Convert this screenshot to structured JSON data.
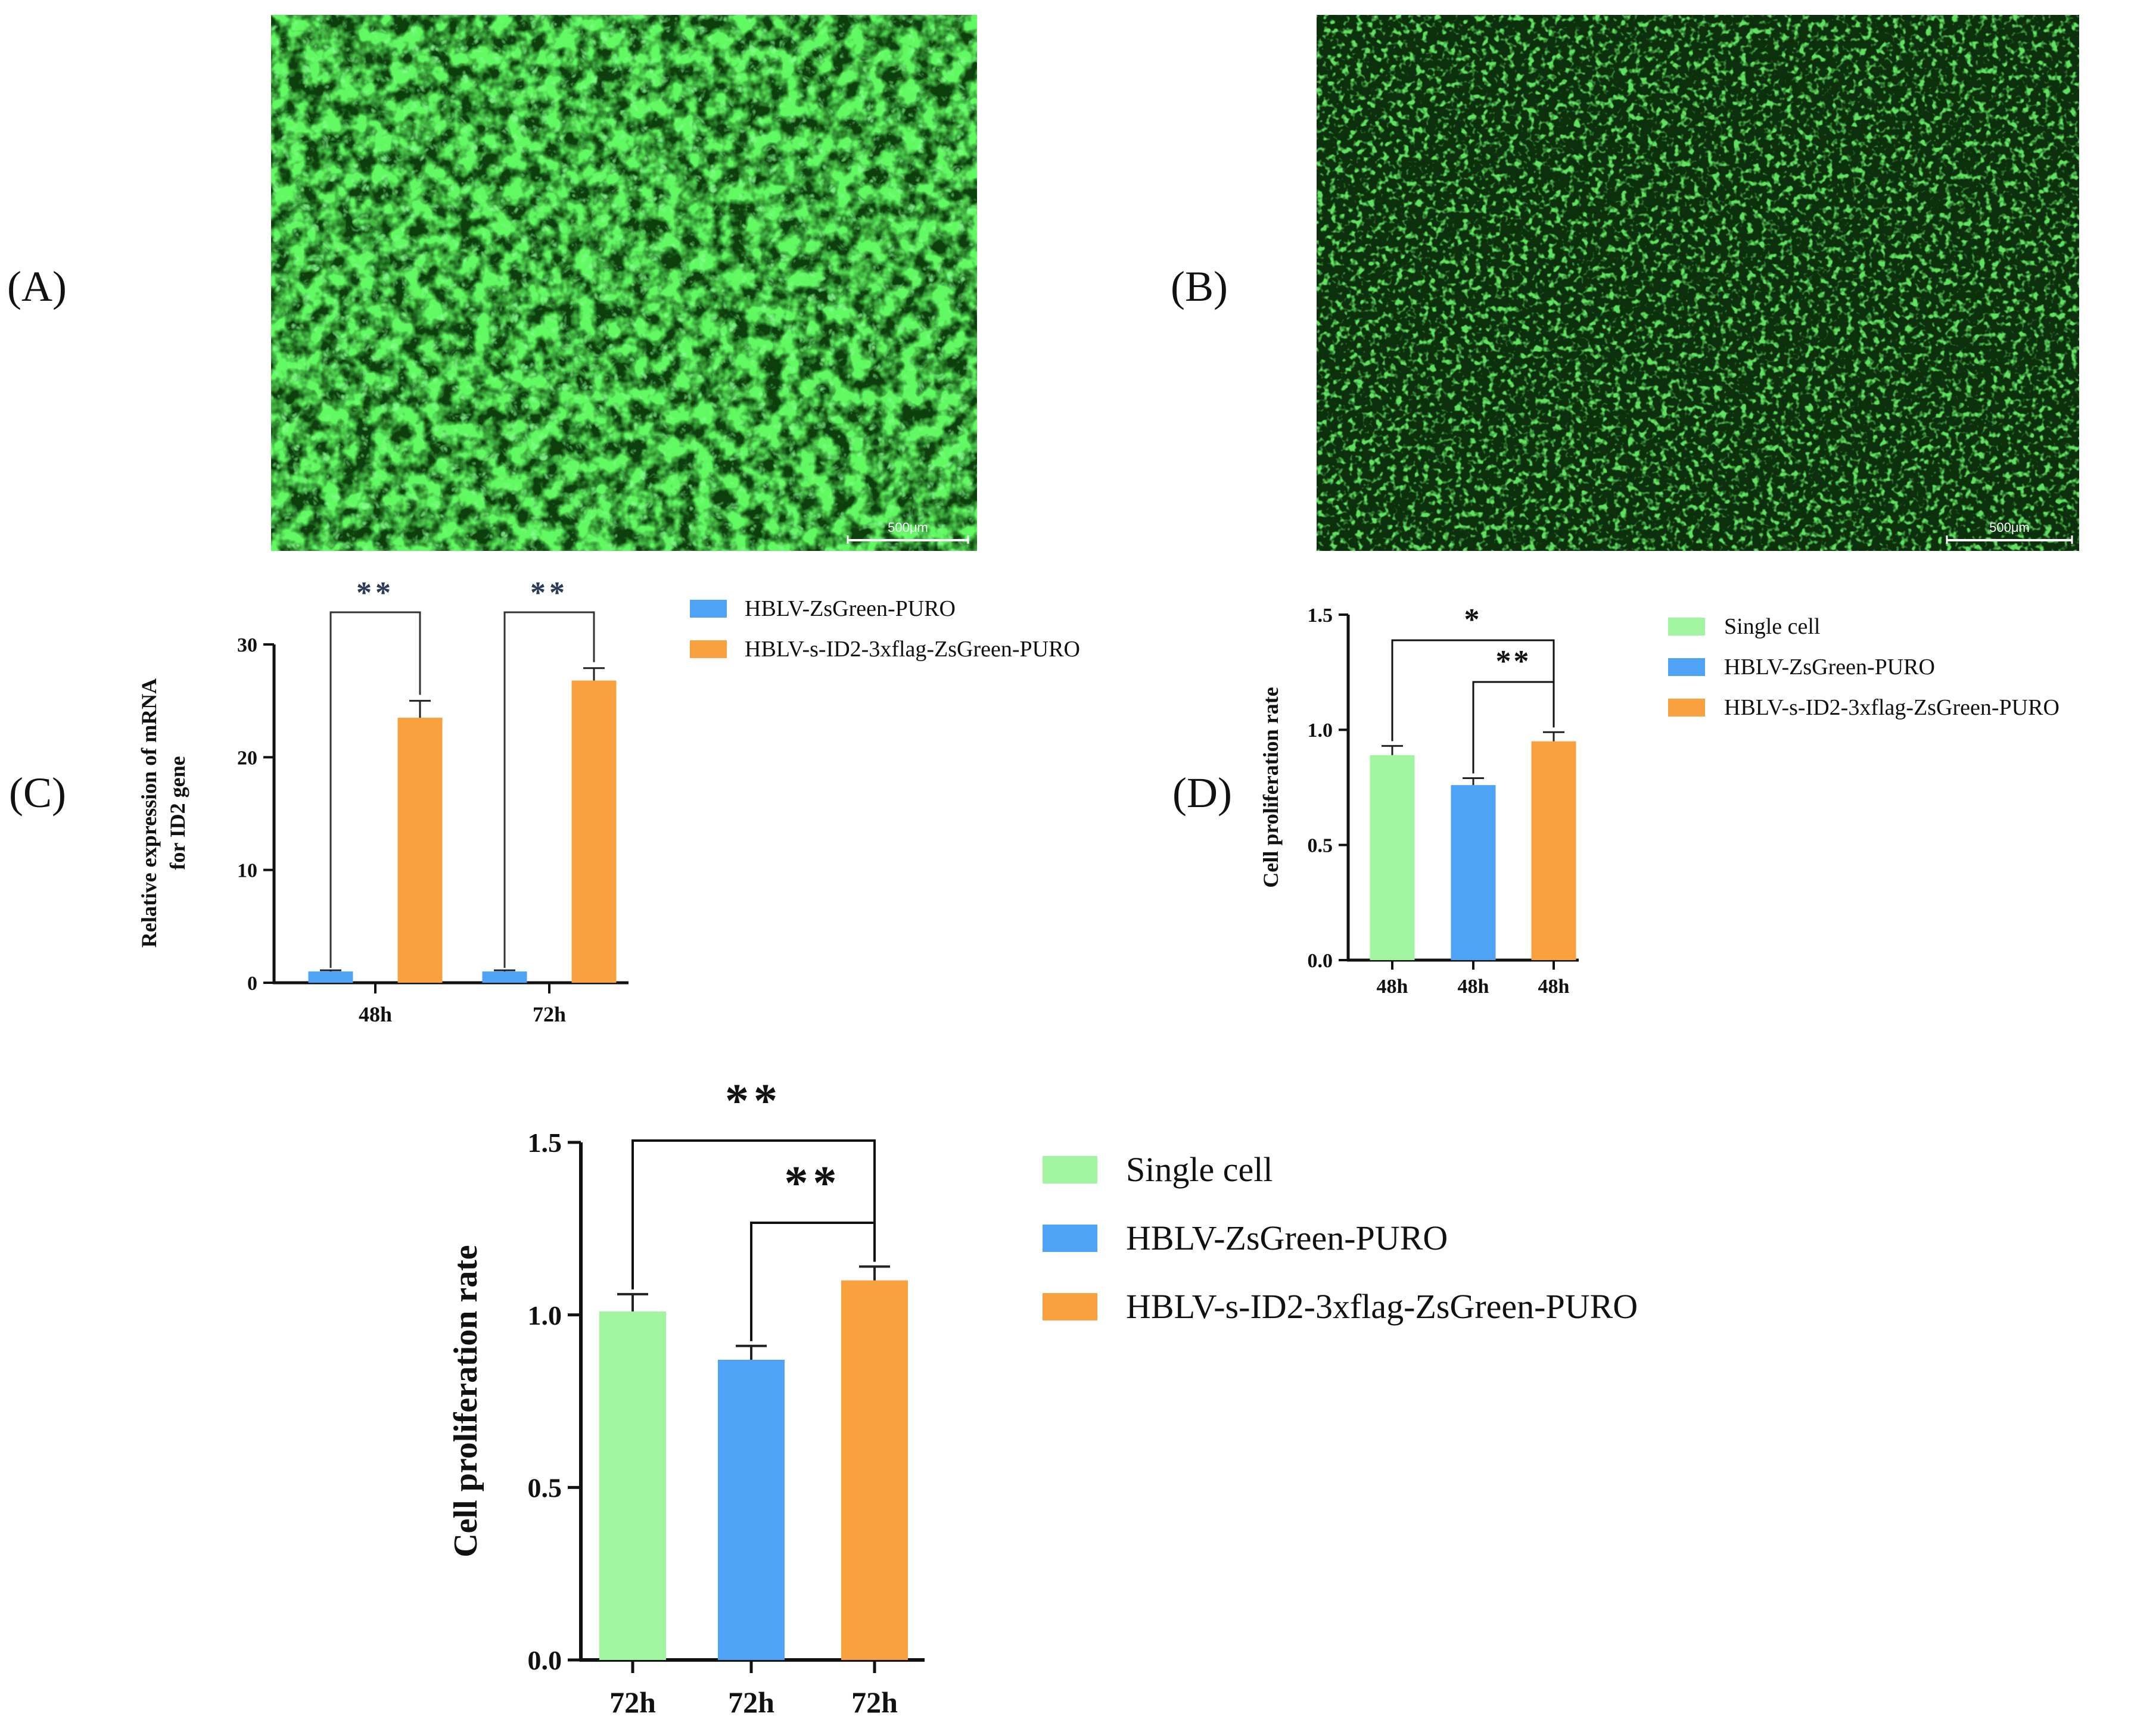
{
  "panels": {
    "A": "(A)",
    "B": "(B)",
    "C": "(C)",
    "D": "(D)"
  },
  "micrographs": [
    {
      "scale_bar": "500μm",
      "brightness": "bright",
      "color": "#2ed12e"
    },
    {
      "scale_bar": "500μm",
      "brightness": "dim",
      "color": "#1a8a1a"
    }
  ],
  "colors": {
    "single_cell": "#a2f5a0",
    "hblv_zsgreen": "#4fa3f7",
    "hblv_id2": "#f9a13f"
  },
  "legend_C": [
    {
      "label": "HBLV-ZsGreen-PURO",
      "color": "#4fa3f7"
    },
    {
      "label": "HBLV-s-ID2-3xflag-ZsGreen-PURO",
      "color": "#f9a13f"
    }
  ],
  "legend_D": [
    {
      "label": "Single cell",
      "color": "#a2f5a0"
    },
    {
      "label": "HBLV-ZsGreen-PURO",
      "color": "#4fa3f7"
    },
    {
      "label": "HBLV-s-ID2-3xflag-ZsGreen-PURO",
      "color": "#f9a13f"
    }
  ],
  "legend_E": [
    {
      "label": "Single cell",
      "color": "#a2f5a0"
    },
    {
      "label": "HBLV-ZsGreen-PURO",
      "color": "#4fa3f7"
    },
    {
      "label": "HBLV-s-ID2-3xflag-ZsGreen-PURO",
      "color": "#f9a13f"
    }
  ],
  "chart_data": [
    {
      "id": "C",
      "type": "bar",
      "ylabel_line1": "Relative expression of mRNA",
      "ylabel_line2": "for ID2 gene",
      "categories": [
        "48h",
        "72h"
      ],
      "ylim": [
        0,
        30
      ],
      "yticks": [
        0,
        10,
        20,
        30
      ],
      "series": [
        {
          "name": "HBLV-ZsGreen-PURO",
          "values": [
            1.0,
            1.0
          ],
          "errors": [
            0.1,
            0.1
          ],
          "color": "#4fa3f7"
        },
        {
          "name": "HBLV-s-ID2-3xflag-ZsGreen-PURO",
          "values": [
            23.5,
            26.8
          ],
          "errors": [
            1.5,
            1.1
          ],
          "color": "#f9a13f"
        }
      ],
      "significance": [
        {
          "category": 0,
          "label": "**"
        },
        {
          "category": 1,
          "label": "**"
        }
      ]
    },
    {
      "id": "D",
      "type": "bar",
      "ylabel": "Cell proliferation rate",
      "categories": [
        "48h",
        "48h",
        "48h"
      ],
      "ylim": [
        0,
        1.5
      ],
      "yticks": [
        "0.0",
        "0.5",
        "1.0",
        "1.5"
      ],
      "values": [
        0.89,
        0.76,
        0.95
      ],
      "errors": [
        0.04,
        0.03,
        0.04
      ],
      "colors": [
        "#a2f5a0",
        "#4fa3f7",
        "#f9a13f"
      ],
      "significance": [
        {
          "from": 0,
          "to": 2,
          "label": "*"
        },
        {
          "from": 1,
          "to": 2,
          "label": "**"
        }
      ]
    },
    {
      "id": "E",
      "type": "bar",
      "ylabel": "Cell proliferation rate",
      "categories": [
        "72h",
        "72h",
        "72h"
      ],
      "ylim": [
        0,
        1.5
      ],
      "yticks": [
        "0.0",
        "0.5",
        "1.0",
        "1.5"
      ],
      "values": [
        1.01,
        0.87,
        1.1
      ],
      "errors": [
        0.05,
        0.04,
        0.04
      ],
      "colors": [
        "#a2f5a0",
        "#4fa3f7",
        "#f9a13f"
      ],
      "significance": [
        {
          "from": 0,
          "to": 2,
          "label": "**"
        },
        {
          "from": 1,
          "to": 2,
          "label": "**"
        }
      ]
    }
  ]
}
